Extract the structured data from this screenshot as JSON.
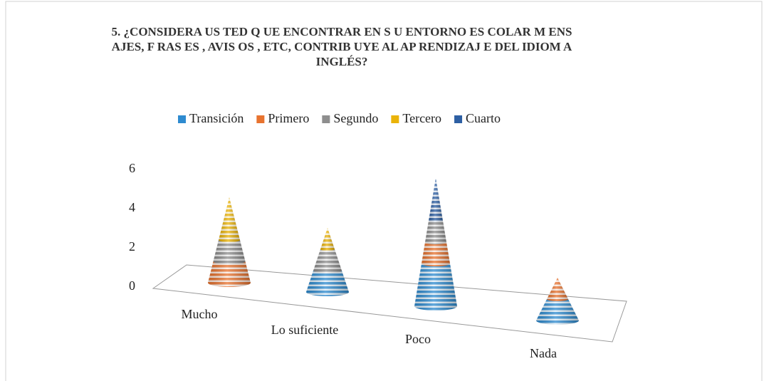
{
  "chart_data": {
    "type": "cone3d-stacked",
    "title": "5. ¿CONSIDERA US TED Q UE ENCONTRAR EN S U ENTORNO ES COLAR M ENS AJES, F RAS ES , AVIS OS , ETC, CONTRIB UYE AL AP RENDIZAJ E DEL IDIOM A INGLÉS?",
    "categories": [
      "Mucho",
      "Lo suficiente",
      "Poco",
      "Nada"
    ],
    "series": [
      {
        "name": "Transición",
        "color": "#2e8bd0",
        "values": [
          0,
          1,
          2,
          1
        ]
      },
      {
        "name": "Primero",
        "color": "#e8732f",
        "values": [
          1,
          0,
          1,
          1
        ]
      },
      {
        "name": "Segundo",
        "color": "#8e8e8e",
        "values": [
          1,
          1,
          1,
          0
        ]
      },
      {
        "name": "Tercero",
        "color": "#eab308",
        "values": [
          2,
          1,
          0,
          0
        ]
      },
      {
        "name": "Cuarto",
        "color": "#2d5fa3",
        "values": [
          0,
          0,
          2,
          0
        ]
      }
    ],
    "ylim": [
      0,
      6
    ],
    "yticks": [
      0,
      2,
      4,
      6
    ],
    "legend": "top"
  }
}
